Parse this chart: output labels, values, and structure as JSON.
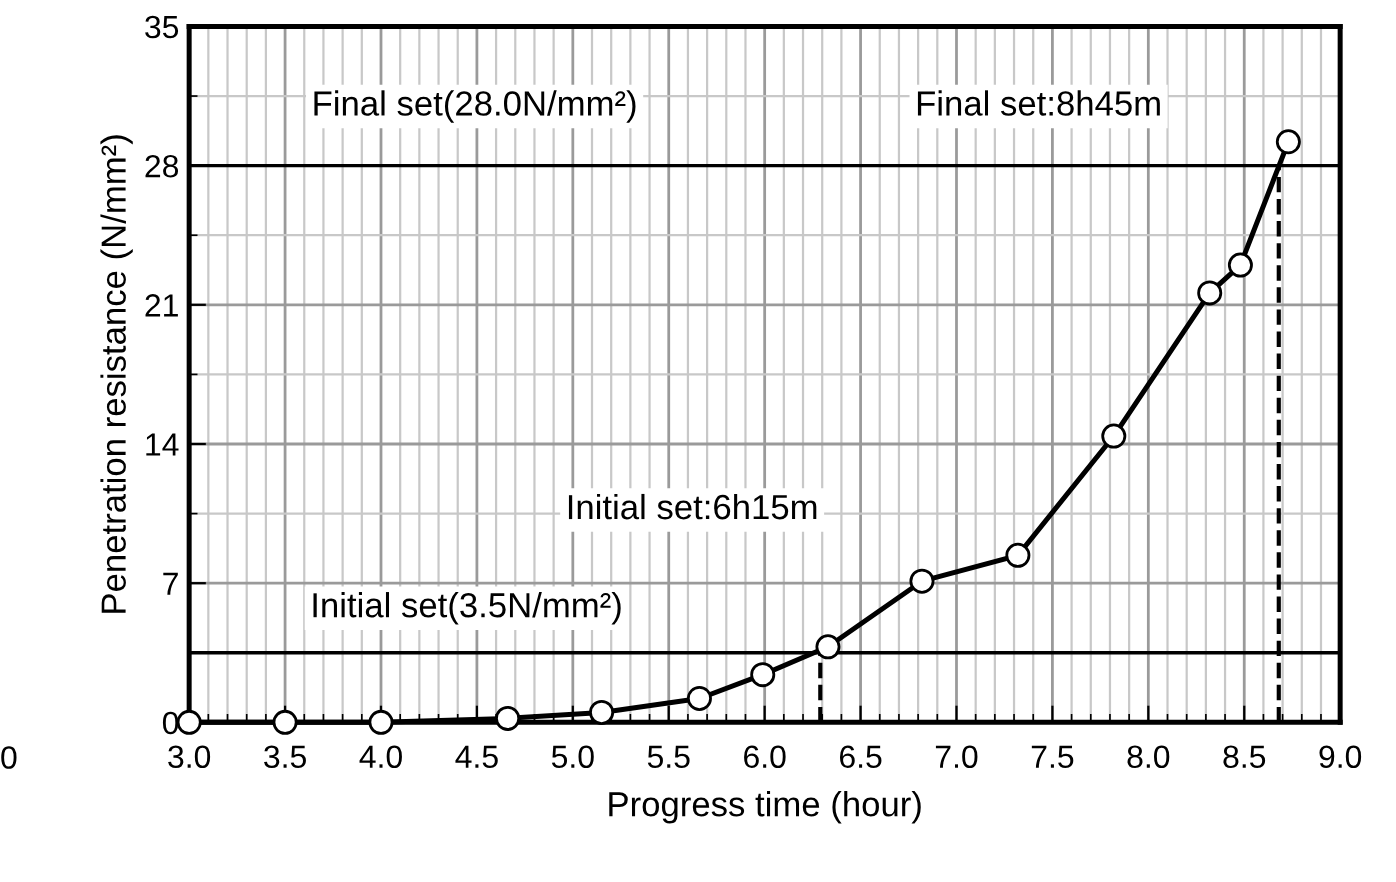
{
  "chart_data": {
    "type": "line",
    "xlabel": "Progress time (hour)",
    "ylabel": "Penetration resistance (N/mm²)",
    "x": [
      3.0,
      3.5,
      4.0,
      4.66,
      5.15,
      5.66,
      5.99,
      6.33,
      6.82,
      7.32,
      7.82,
      8.32,
      8.48,
      8.73
    ],
    "series": [
      {
        "color": "#000000",
        "values": [
          0,
          0,
          0,
          0.2,
          0.5,
          1.2,
          2.4,
          3.8,
          7.1,
          8.4,
          14.4,
          21.6,
          23.0,
          29.2
        ]
      }
    ],
    "xlim": [
      3.0,
      9.0
    ],
    "xticks": [
      {
        "value": 3.0,
        "label": "3.0"
      },
      3.5,
      {
        "value": 4.0,
        "label": "4.0"
      },
      4.5,
      {
        "value": 5.0,
        "label": "5.0"
      },
      5.5,
      {
        "value": 6.0,
        "label": "6.0"
      },
      6.5,
      {
        "value": 7.0,
        "label": "7.0"
      },
      7.5,
      {
        "value": 8.0,
        "label": "8.0"
      },
      8.5,
      {
        "value": 9.0,
        "label": "9.0"
      }
    ],
    "ylim": [
      0,
      35
    ],
    "yticks": [
      0,
      7,
      14,
      21,
      28,
      35
    ],
    "ref_lines": [
      {
        "axis": "y",
        "value": 28,
        "color": "#000000",
        "line_style": "solid"
      },
      {
        "axis": "y",
        "value": 3.5,
        "color": "#000000",
        "line_style": "solid"
      },
      {
        "axis": "x",
        "value": 6.29,
        "color": "#000000",
        "line_style": "dashed"
      },
      {
        "axis": "x",
        "value": 8.68,
        "color": "#000000",
        "line_style": "dashed"
      }
    ],
    "annotations": [
      "Final set(28.0N/mm²)",
      "Final set:8h45m",
      "Initial set:6h15m",
      "Initial set(3.5N/mm²)",
      "0"
    ],
    "grid": true,
    "marker": "circle",
    "line_style": "solid"
  }
}
